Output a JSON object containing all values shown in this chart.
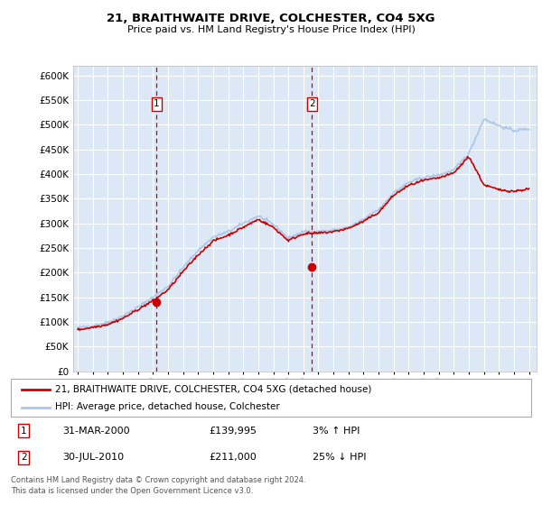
{
  "title": "21, BRAITHWAITE DRIVE, COLCHESTER, CO4 5XG",
  "subtitle": "Price paid vs. HM Land Registry's House Price Index (HPI)",
  "legend_line1": "21, BRAITHWAITE DRIVE, COLCHESTER, CO4 5XG (detached house)",
  "legend_line2": "HPI: Average price, detached house, Colchester",
  "annotation1_date": "31-MAR-2000",
  "annotation1_price": "£139,995",
  "annotation1_hpi": "3% ↑ HPI",
  "annotation2_date": "30-JUL-2010",
  "annotation2_price": "£211,000",
  "annotation2_hpi": "25% ↓ HPI",
  "footer": "Contains HM Land Registry data © Crown copyright and database right 2024.\nThis data is licensed under the Open Government Licence v3.0.",
  "hpi_color": "#aec6e8",
  "price_color": "#cc0000",
  "vline_color": "#cc0000",
  "background_color": "#dce8f5",
  "grid_color": "#ffffff",
  "ylim_min": 0,
  "ylim_max": 620000,
  "yticks": [
    0,
    50000,
    100000,
    150000,
    200000,
    250000,
    300000,
    350000,
    400000,
    450000,
    500000,
    550000,
    600000
  ],
  "year_start": 1995,
  "year_end": 2025,
  "purchase1_year": 2000.25,
  "purchase1_value": 139995,
  "purchase2_year": 2010.58,
  "purchase2_value": 211000,
  "hpi_knots_x": [
    1995,
    1996,
    1997,
    1998,
    1999,
    2000,
    2001,
    2002,
    2003,
    2004,
    2005,
    2006,
    2007,
    2008,
    2009,
    2010,
    2011,
    2012,
    2013,
    2014,
    2015,
    2016,
    2017,
    2018,
    2019,
    2020,
    2021,
    2022,
    2023,
    2024,
    2025
  ],
  "hpi_knots_y": [
    88000,
    92000,
    99000,
    112000,
    130000,
    150000,
    172000,
    210000,
    245000,
    272000,
    283000,
    300000,
    315000,
    298000,
    270000,
    283000,
    283000,
    286000,
    292000,
    308000,
    328000,
    362000,
    383000,
    393000,
    398000,
    408000,
    442000,
    512000,
    498000,
    488000,
    492000
  ],
  "price_knots_x": [
    1995,
    1996,
    1997,
    1998,
    1999,
    2000,
    2001,
    2002,
    2003,
    2004,
    2005,
    2006,
    2007,
    2008,
    2009,
    2010,
    2011,
    2012,
    2013,
    2014,
    2015,
    2016,
    2017,
    2018,
    2019,
    2020,
    2021,
    2022,
    2023,
    2024,
    2025
  ],
  "price_knots_y": [
    84000,
    89000,
    95000,
    107000,
    125000,
    143000,
    165000,
    202000,
    236000,
    264000,
    276000,
    292000,
    308000,
    292000,
    265000,
    279000,
    280000,
    283000,
    290000,
    304000,
    322000,
    357000,
    377000,
    387000,
    392000,
    402000,
    436000,
    378000,
    368000,
    365000,
    370000
  ]
}
